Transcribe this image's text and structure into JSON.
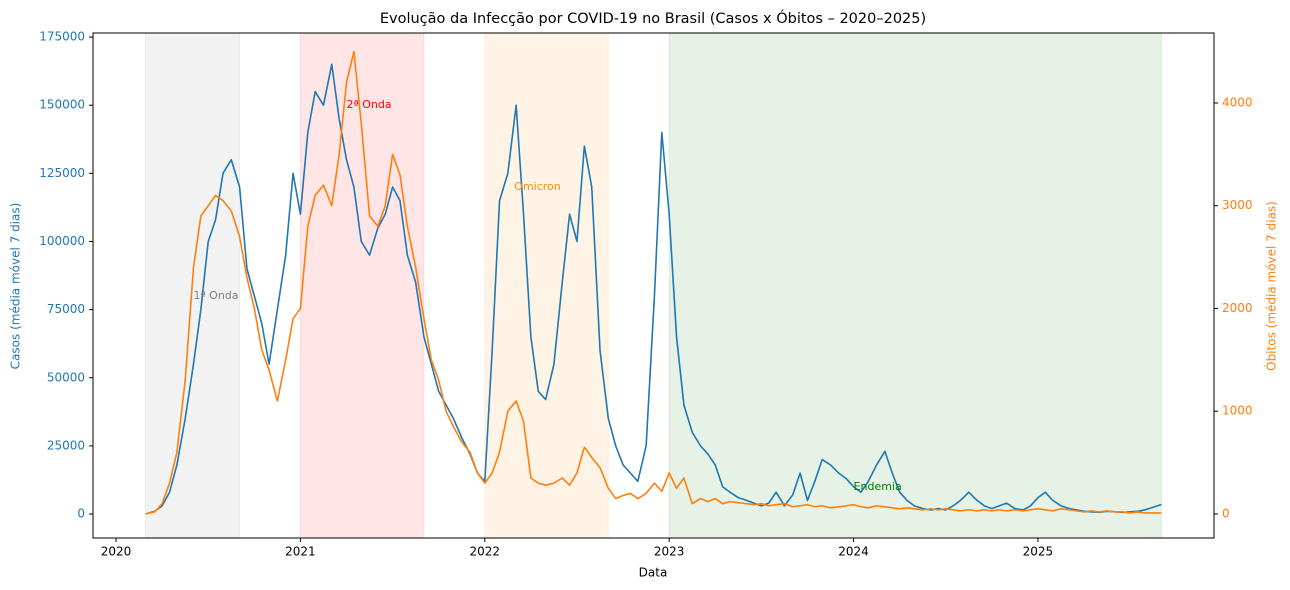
{
  "chart_data": {
    "type": "line",
    "title": "Evolução da Infecção por COVID-19 no Brasil (Casos x Óbitos – 2020–2025)",
    "xlabel": "Data",
    "ylabel": "Casos (média móvel 7 dias)",
    "y2label": "Óbitos (média móvel 7 dias)",
    "x": [
      2020.16,
      2020.21,
      2020.25,
      2020.29,
      2020.33,
      2020.375,
      2020.42,
      2020.46,
      2020.5,
      2020.54,
      2020.58,
      2020.625,
      2020.67,
      2020.71,
      2020.75,
      2020.79,
      2020.83,
      2020.875,
      2020.92,
      2020.96,
      2021.0,
      2021.04,
      2021.08,
      2021.125,
      2021.17,
      2021.21,
      2021.25,
      2021.29,
      2021.33,
      2021.375,
      2021.42,
      2021.46,
      2021.5,
      2021.54,
      2021.58,
      2021.625,
      2021.67,
      2021.71,
      2021.75,
      2021.79,
      2021.83,
      2021.875,
      2021.92,
      2021.96,
      2022.0,
      2022.04,
      2022.08,
      2022.125,
      2022.17,
      2022.21,
      2022.25,
      2022.29,
      2022.33,
      2022.375,
      2022.42,
      2022.46,
      2022.5,
      2022.54,
      2022.58,
      2022.625,
      2022.67,
      2022.71,
      2022.75,
      2022.79,
      2022.83,
      2022.875,
      2022.92,
      2022.96,
      2023.0,
      2023.04,
      2023.08,
      2023.125,
      2023.17,
      2023.21,
      2023.25,
      2023.29,
      2023.33,
      2023.375,
      2023.42,
      2023.46,
      2023.5,
      2023.54,
      2023.58,
      2023.625,
      2023.67,
      2023.71,
      2023.75,
      2023.79,
      2023.83,
      2023.875,
      2023.92,
      2023.96,
      2024.0,
      2024.04,
      2024.08,
      2024.125,
      2024.17,
      2024.21,
      2024.25,
      2024.29,
      2024.33,
      2024.375,
      2024.42,
      2024.46,
      2024.5,
      2024.54,
      2024.58,
      2024.625,
      2024.67,
      2024.71,
      2024.75,
      2024.79,
      2024.83,
      2024.875,
      2024.92,
      2024.96,
      2025.0,
      2025.04,
      2025.08,
      2025.125,
      2025.17,
      2025.21,
      2025.25,
      2025.29,
      2025.33,
      2025.375,
      2025.42,
      2025.46,
      2025.5,
      2025.54,
      2025.58,
      2025.625,
      2025.67
    ],
    "series": [
      {
        "name": "Casos",
        "color": "#1f77b4",
        "axis": "y",
        "values": [
          0,
          1000,
          3000,
          8000,
          18000,
          35000,
          55000,
          75000,
          100000,
          108000,
          125000,
          130000,
          120000,
          90000,
          80000,
          70000,
          55000,
          75000,
          95000,
          125000,
          110000,
          140000,
          155000,
          150000,
          165000,
          145000,
          130000,
          120000,
          100000,
          95000,
          105000,
          110000,
          120000,
          115000,
          95000,
          85000,
          65000,
          55000,
          45000,
          40000,
          35000,
          28000,
          22000,
          15000,
          12000,
          60000,
          115000,
          125000,
          150000,
          110000,
          65000,
          45000,
          42000,
          55000,
          85000,
          110000,
          100000,
          135000,
          120000,
          60000,
          35000,
          25000,
          18000,
          15000,
          12000,
          25000,
          80000,
          140000,
          110000,
          65000,
          40000,
          30000,
          25000,
          22000,
          18000,
          10000,
          8000,
          6000,
          5000,
          4000,
          3000,
          4000,
          8000,
          3000,
          7000,
          15000,
          5000,
          12000,
          20000,
          18000,
          15000,
          13000,
          10000,
          8000,
          12000,
          18000,
          23000,
          15000,
          8000,
          5000,
          3000,
          2000,
          1500,
          2000,
          1500,
          3000,
          5000,
          8000,
          5000,
          3000,
          2000,
          3000,
          4000,
          2000,
          1500,
          3000,
          6000,
          8000,
          5000,
          3000,
          2000,
          1500,
          1000,
          800,
          600,
          1000,
          800,
          600,
          800,
          1000,
          1500,
          2500,
          3500
        ]
      },
      {
        "name": "Óbitos",
        "color": "#ff7f0e",
        "axis": "y2",
        "values": [
          0,
          20,
          100,
          300,
          600,
          1300,
          2400,
          2900,
          3000,
          3100,
          3050,
          2950,
          2700,
          2300,
          2000,
          1600,
          1400,
          1100,
          1500,
          1900,
          2000,
          2800,
          3100,
          3200,
          3000,
          3500,
          4200,
          4500,
          3800,
          2900,
          2800,
          3000,
          3500,
          3300,
          2800,
          2400,
          1900,
          1500,
          1300,
          1000,
          850,
          700,
          600,
          400,
          300,
          400,
          600,
          1000,
          1100,
          900,
          350,
          300,
          280,
          300,
          350,
          280,
          400,
          650,
          550,
          450,
          250,
          150,
          180,
          200,
          150,
          200,
          300,
          220,
          400,
          250,
          350,
          100,
          150,
          120,
          150,
          100,
          120,
          110,
          100,
          90,
          100,
          80,
          90,
          100,
          70,
          80,
          90,
          70,
          80,
          60,
          70,
          80,
          90,
          70,
          60,
          80,
          70,
          60,
          50,
          60,
          50,
          40,
          50,
          40,
          50,
          40,
          30,
          40,
          30,
          40,
          30,
          40,
          30,
          40,
          30,
          40,
          50,
          40,
          30,
          50,
          40,
          30,
          20,
          30,
          20,
          30,
          20,
          20,
          10,
          20,
          10,
          10,
          10
        ]
      }
    ],
    "regions": [
      {
        "label": "1ª Onda",
        "start": 2020.16,
        "end": 2020.67,
        "color": "#808080",
        "x": 2020.42,
        "y": 80000
      },
      {
        "label": "2ª Onda",
        "start": 2021.0,
        "end": 2021.67,
        "color": "#ff0000",
        "x": 2021.25,
        "y": 150000
      },
      {
        "label": "Omicron",
        "start": 2022.0,
        "end": 2022.67,
        "color": "#ff8c00",
        "x": 2022.16,
        "y": 120000
      },
      {
        "label": "Endemia",
        "start": 2023.0,
        "end": 2025.67,
        "color": "#008000",
        "x": 2024.0,
        "y": 10000
      }
    ],
    "xlim": [
      2019.875,
      2025.955
    ],
    "xticks": [
      2020,
      2021,
      2022,
      2023,
      2024,
      2025
    ],
    "ylim": [
      -8800,
      176500
    ],
    "yticks": [
      0,
      25000,
      50000,
      75000,
      100000,
      125000,
      150000,
      175000
    ],
    "y2lim": [
      -234,
      4681
    ],
    "y2ticks": [
      0,
      1000,
      2000,
      3000,
      4000
    ]
  }
}
